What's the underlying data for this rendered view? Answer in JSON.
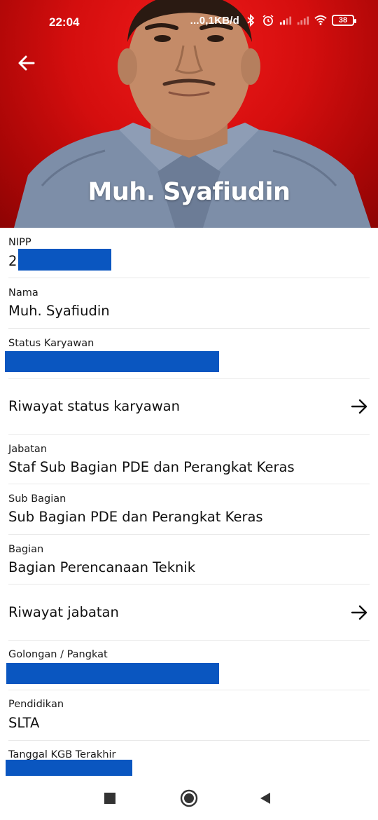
{
  "status_bar": {
    "time": "22:04",
    "network_speed": "...0,1KB/d",
    "battery": "38"
  },
  "header": {
    "name": "Muh. Syafiudin",
    "background_color": "#d40e0e"
  },
  "fields": {
    "nipp": {
      "label": "NIPP",
      "value_prefix": "2"
    },
    "nama": {
      "label": "Nama",
      "value": "Muh. Syafiudin"
    },
    "status_karyawan": {
      "label": "Status Karyawan"
    },
    "riwayat_status": {
      "label": "Riwayat status karyawan"
    },
    "jabatan": {
      "label": "Jabatan",
      "value": "Staf Sub Bagian PDE dan Perangkat Keras"
    },
    "sub_bagian": {
      "label": "Sub Bagian",
      "value": "Sub Bagian PDE dan Perangkat Keras"
    },
    "bagian": {
      "label": "Bagian",
      "value": "Bagian Perencanaan Teknik"
    },
    "riwayat_jabatan": {
      "label": "Riwayat jabatan"
    },
    "golongan": {
      "label": "Golongan / Pangkat"
    },
    "pendidikan": {
      "label": "Pendidikan",
      "value": "SLTA"
    },
    "tanggal_kgb": {
      "label": "Tanggal KGB Terakhir"
    }
  },
  "colors": {
    "redaction": "#0a56c0",
    "header_red": "#d40e0e"
  },
  "icons": {
    "back": "arrow-left-icon",
    "row_arrow": "arrow-right-icon",
    "nav_recents": "square-icon",
    "nav_home": "circle-icon",
    "nav_back": "triangle-icon"
  }
}
